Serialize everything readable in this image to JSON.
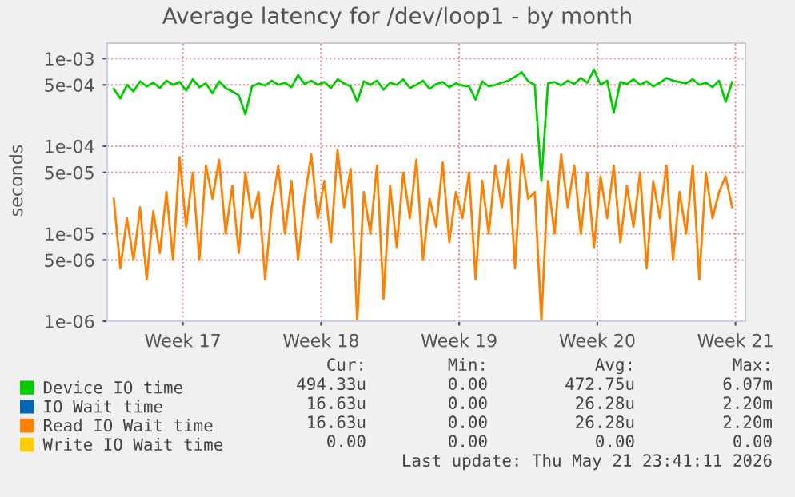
{
  "chart_data": {
    "type": "line",
    "title": "Average latency for /dev/loop1 - by month",
    "ylabel": "seconds",
    "log": "y",
    "grid": true,
    "legend": "bottom",
    "marker": "none",
    "line_style": "solid",
    "xlim": [
      "2026-04-19T16:00",
      "2026-05-22T00:00"
    ],
    "xticks": [
      {
        "value": "2026-04-23T12:00",
        "label": "Week 17"
      },
      {
        "value": "2026-04-30T12:00",
        "label": "Week 18"
      },
      {
        "value": "2026-05-07T12:00",
        "label": "Week 19"
      },
      {
        "value": "2026-05-14T12:00",
        "label": "Week 20"
      },
      {
        "value": "2026-05-21T12:00",
        "label": "Week 21"
      }
    ],
    "ylim": [
      1e-06,
      0.0015
    ],
    "yticks": [
      {
        "value": 0.001,
        "label": "1e-03"
      },
      {
        "value": 0.0005,
        "label": "5e-04"
      },
      {
        "value": 0.0001,
        "label": "1e-04"
      },
      {
        "value": 5e-05,
        "label": "5e-05"
      },
      {
        "value": 1e-05,
        "label": "1e-05"
      },
      {
        "value": 5e-06,
        "label": "5e-06"
      },
      {
        "value": 1e-06,
        "label": "1e-06"
      }
    ],
    "x": [
      "2026-04-20T00:00",
      "2026-04-20T08:00",
      "2026-04-20T16:00",
      "2026-04-21T00:00",
      "2026-04-21T08:00",
      "2026-04-21T16:00",
      "2026-04-22T00:00",
      "2026-04-22T08:00",
      "2026-04-22T16:00",
      "2026-04-23T00:00",
      "2026-04-23T08:00",
      "2026-04-23T16:00",
      "2026-04-24T00:00",
      "2026-04-24T08:00",
      "2026-04-24T16:00",
      "2026-04-25T00:00",
      "2026-04-25T08:00",
      "2026-04-25T16:00",
      "2026-04-26T00:00",
      "2026-04-26T08:00",
      "2026-04-26T16:00",
      "2026-04-27T00:00",
      "2026-04-27T08:00",
      "2026-04-27T16:00",
      "2026-04-28T00:00",
      "2026-04-28T08:00",
      "2026-04-28T16:00",
      "2026-04-29T00:00",
      "2026-04-29T08:00",
      "2026-04-29T16:00",
      "2026-04-30T00:00",
      "2026-04-30T08:00",
      "2026-04-30T16:00",
      "2026-05-01T00:00",
      "2026-05-01T08:00",
      "2026-05-01T16:00",
      "2026-05-02T00:00",
      "2026-05-02T08:00",
      "2026-05-02T16:00",
      "2026-05-03T00:00",
      "2026-05-03T08:00",
      "2026-05-03T16:00",
      "2026-05-04T00:00",
      "2026-05-04T08:00",
      "2026-05-04T16:00",
      "2026-05-05T00:00",
      "2026-05-05T08:00",
      "2026-05-05T16:00",
      "2026-05-06T00:00",
      "2026-05-06T08:00",
      "2026-05-06T16:00",
      "2026-05-07T00:00",
      "2026-05-07T08:00",
      "2026-05-07T16:00",
      "2026-05-08T00:00",
      "2026-05-08T08:00",
      "2026-05-08T16:00",
      "2026-05-09T00:00",
      "2026-05-09T08:00",
      "2026-05-09T16:00",
      "2026-05-10T00:00",
      "2026-05-10T08:00",
      "2026-05-10T16:00",
      "2026-05-11T00:00",
      "2026-05-11T08:00",
      "2026-05-11T16:00",
      "2026-05-12T00:00",
      "2026-05-12T08:00",
      "2026-05-12T16:00",
      "2026-05-13T00:00",
      "2026-05-13T08:00",
      "2026-05-13T16:00",
      "2026-05-14T00:00",
      "2026-05-14T08:00",
      "2026-05-14T16:00",
      "2026-05-15T00:00",
      "2026-05-15T08:00",
      "2026-05-15T16:00",
      "2026-05-16T00:00",
      "2026-05-16T08:00",
      "2026-05-16T16:00",
      "2026-05-17T00:00",
      "2026-05-17T08:00",
      "2026-05-17T16:00",
      "2026-05-18T00:00",
      "2026-05-18T08:00",
      "2026-05-18T16:00",
      "2026-05-19T00:00",
      "2026-05-19T08:00",
      "2026-05-19T16:00",
      "2026-05-20T00:00",
      "2026-05-20T08:00",
      "2026-05-20T16:00",
      "2026-05-21T00:00",
      "2026-05-21T08:00"
    ],
    "series": [
      {
        "name": "Device IO time",
        "color": "#00cc00",
        "values": [
          0.00045,
          0.00035,
          0.0005,
          0.00042,
          0.00055,
          0.00048,
          0.00053,
          0.00046,
          0.00056,
          0.0005,
          0.00054,
          0.00043,
          0.00058,
          0.00047,
          0.00052,
          0.0004,
          0.00055,
          0.00046,
          0.00042,
          0.00038,
          0.00023,
          0.00048,
          0.00052,
          0.00049,
          0.00056,
          0.0005,
          0.00053,
          0.00047,
          0.00065,
          0.00051,
          0.00056,
          0.0005,
          0.00054,
          0.00046,
          0.00058,
          0.00052,
          0.00048,
          0.00032,
          0.00055,
          0.0005,
          0.00056,
          0.00044,
          0.00053,
          0.0005,
          0.00058,
          0.00046,
          0.0005,
          0.00056,
          0.00045,
          0.00051,
          0.00054,
          0.00047,
          0.00052,
          0.00049,
          0.00048,
          0.00034,
          0.00055,
          0.00048,
          0.0005,
          0.00053,
          0.00056,
          0.00062,
          0.0007,
          0.00055,
          0.0005,
          4e-05,
          0.00052,
          0.00054,
          0.00049,
          0.00056,
          0.00051,
          0.0006,
          0.00053,
          0.00075,
          0.0005,
          0.00056,
          0.00024,
          0.00054,
          0.00051,
          0.00058,
          0.0005,
          0.00055,
          0.00048,
          0.00053,
          0.0006,
          0.00056,
          0.00054,
          0.00052,
          0.00058,
          0.0005,
          0.00053,
          0.00047,
          0.00056,
          0.00032,
          0.00054
        ]
      },
      {
        "name": "IO Wait time",
        "color": "#0066b3",
        "values": [
          null,
          null,
          null,
          null,
          null,
          null,
          null,
          null,
          null,
          null,
          null,
          null,
          null,
          null,
          null,
          null,
          null,
          null,
          null,
          null,
          null,
          null,
          null,
          null,
          null,
          null,
          null,
          null,
          null,
          null,
          null,
          null,
          null,
          null,
          null,
          null,
          null,
          null,
          null,
          null,
          null,
          null,
          null,
          null,
          null,
          null,
          null,
          null,
          null,
          null,
          null,
          null,
          null,
          null,
          null,
          null,
          null,
          null,
          null,
          null,
          null,
          null,
          null,
          null,
          null,
          null,
          null,
          null,
          null,
          null,
          null,
          null,
          null,
          null,
          null,
          null,
          null,
          null,
          null,
          null,
          null,
          null,
          null,
          null,
          null,
          null,
          null,
          null,
          null,
          null,
          null,
          null,
          null,
          null,
          null
        ]
      },
      {
        "name": "Read IO Wait time",
        "color": "#ff8000",
        "values": [
          2.5e-05,
          4e-06,
          1.5e-05,
          5e-06,
          2e-05,
          3e-06,
          1.8e-05,
          6e-06,
          3e-05,
          5e-06,
          7.5e-05,
          1.2e-05,
          5e-05,
          5e-06,
          6e-05,
          2.5e-05,
          7e-05,
          1e-05,
          3.5e-05,
          6e-06,
          5e-05,
          1.5e-05,
          3e-05,
          3e-06,
          2e-05,
          6e-05,
          1e-05,
          4e-05,
          5e-06,
          2.5e-05,
          8e-05,
          1.5e-05,
          4e-05,
          8e-06,
          9e-05,
          2e-05,
          5.5e-05,
          1e-06,
          3e-05,
          1e-05,
          6e-05,
          1.8e-06,
          3.5e-05,
          7e-06,
          5e-05,
          1.5e-05,
          7e-05,
          5e-06,
          2.5e-05,
          1.2e-05,
          6.5e-05,
          8e-06,
          3e-05,
          1.5e-05,
          5e-05,
          3e-06,
          4e-05,
          1e-05,
          6e-05,
          2e-05,
          7e-05,
          4e-06,
          8e-05,
          2.5e-05,
          3e-05,
          1e-06,
          4e-05,
          1e-05,
          8e-05,
          2e-05,
          6e-05,
          1e-05,
          5e-05,
          7e-06,
          4.5e-05,
          1.5e-05,
          6e-05,
          8e-06,
          3.5e-05,
          1.2e-05,
          5e-05,
          4e-06,
          4e-05,
          1.5e-05,
          6e-05,
          5e-06,
          3e-05,
          1e-05,
          6e-05,
          3e-06,
          5e-05,
          1.5e-05,
          3e-05,
          4.5e-05,
          2e-05
        ]
      },
      {
        "name": "Write IO Wait time",
        "color": "#ffcc00",
        "values": [
          null,
          null,
          null,
          null,
          null,
          null,
          null,
          null,
          null,
          null,
          null,
          null,
          null,
          null,
          null,
          null,
          null,
          null,
          null,
          null,
          null,
          null,
          null,
          null,
          null,
          null,
          null,
          null,
          null,
          null,
          null,
          null,
          null,
          null,
          null,
          null,
          null,
          null,
          null,
          null,
          null,
          null,
          null,
          null,
          null,
          null,
          null,
          null,
          null,
          null,
          null,
          null,
          null,
          null,
          null,
          null,
          null,
          null,
          null,
          null,
          null,
          null,
          null,
          null,
          null,
          null,
          null,
          null,
          null,
          null,
          null,
          null,
          null,
          null,
          null,
          null,
          null,
          null,
          null,
          null,
          null,
          null,
          null,
          null,
          null,
          null,
          null,
          null,
          null,
          null,
          null,
          null,
          null,
          null,
          null
        ]
      }
    ],
    "annotations": [
      "Cur:",
      "Min:",
      "Avg:",
      "Max:",
      "494.33u",
      "0.00",
      "472.75u",
      "6.07m",
      "16.63u",
      "0.00",
      "26.28u",
      "2.20m",
      "16.63u",
      "0.00",
      "26.28u",
      "2.20m",
      "0.00",
      "0.00",
      "0.00",
      "0.00",
      "Last update: Thu May 21 23:41:11 2026"
    ]
  }
}
